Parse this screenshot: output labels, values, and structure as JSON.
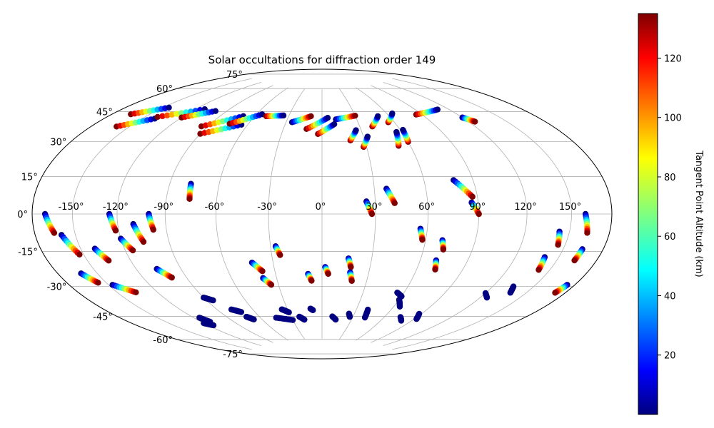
{
  "chart_data": {
    "type": "scatter",
    "projection": "aitoff/hammer (mollweide-like) world map, longitude -180 to 180, latitude -90 to 90",
    "title": "Solar occultations for diffraction order 149",
    "xlabel": "",
    "ylabel": "",
    "xlim": [
      -180,
      180
    ],
    "ylim": [
      -90,
      90
    ],
    "grid": true,
    "lon_ticks": [
      -150,
      -120,
      -90,
      -60,
      -30,
      0,
      30,
      60,
      90,
      120,
      150
    ],
    "lon_tick_labels": [
      "-150°",
      "-120°",
      "-90°",
      "-60°",
      "-30°",
      "0°",
      "30°",
      "60°",
      "90°",
      "120°",
      "150°"
    ],
    "lat_ticks": [
      75,
      60,
      45,
      30,
      15,
      0,
      -15,
      -30,
      -45,
      -60,
      -75
    ],
    "lat_tick_labels": [
      "75°",
      "60°",
      "45°",
      "30°",
      "15°",
      "0°",
      "-15°",
      "-30°",
      "-45°",
      "-60°",
      "-75°"
    ],
    "colorbar": {
      "label": "Tangent Point Altitude (km)",
      "colormap": "jet",
      "range": [
        0,
        135
      ],
      "ticks": [
        20,
        40,
        60,
        80,
        100,
        120
      ],
      "tick_labels": [
        "20",
        "40",
        "60",
        "80",
        "100",
        "120"
      ]
    },
    "series": [
      {
        "lon": [
          -170,
          -165
        ],
        "lat": [
          0,
          -8
        ],
        "alt": [
          0,
          135
        ]
      },
      {
        "lon": [
          -160,
          -153
        ],
        "lat": [
          -9,
          -18
        ],
        "alt": [
          0,
          135
        ]
      },
      {
        "lon": [
          -162,
          -156
        ],
        "lat": [
          -26,
          -31
        ],
        "alt": [
          0,
          135
        ]
      },
      {
        "lon": [
          -147,
          -136
        ],
        "lat": [
          -33,
          -38
        ],
        "alt": [
          0,
          135
        ]
      },
      {
        "lon": [
          -140,
          -135
        ],
        "lat": [
          -16,
          -22
        ],
        "alt": [
          0,
          135
        ]
      },
      {
        "lon": [
          -125,
          -122
        ],
        "lat": [
          0,
          -8
        ],
        "alt": [
          0,
          135
        ]
      },
      {
        "lon": [
          -120,
          -115
        ],
        "lat": [
          -12,
          -18
        ],
        "alt": [
          0,
          135
        ]
      },
      {
        "lon": [
          -110,
          -106
        ],
        "lat": [
          -5,
          -14
        ],
        "alt": [
          0,
          135
        ]
      },
      {
        "lon": [
          -106,
          -100
        ],
        "lat": [
          -28,
          -33
        ],
        "alt": [
          0,
          135
        ]
      },
      {
        "lon": [
          -100,
          -98
        ],
        "lat": [
          0,
          -8
        ],
        "alt": [
          0,
          135
        ]
      },
      {
        "lon": [
          -77,
          -76
        ],
        "lat": [
          16,
          8
        ],
        "alt": [
          0,
          135
        ]
      },
      {
        "lon": [
          -43,
          -38
        ],
        "lat": [
          -27,
          -32
        ],
        "alt": [
          0,
          135
        ]
      },
      {
        "lon": [
          -39,
          -35
        ],
        "lat": [
          -36,
          -40
        ],
        "alt": [
          0,
          135
        ]
      },
      {
        "lon": [
          -27,
          -25
        ],
        "lat": [
          -18,
          -23
        ],
        "alt": [
          0,
          135
        ]
      },
      {
        "lon": [
          -9,
          -7
        ],
        "lat": [
          -34,
          -38
        ],
        "alt": [
          0,
          135
        ]
      },
      {
        "lon": [
          2,
          4
        ],
        "lat": [
          -30,
          -34
        ],
        "alt": [
          0,
          135
        ]
      },
      {
        "lon": [
          16,
          18
        ],
        "lat": [
          -25,
          -30
        ],
        "alt": [
          0,
          135
        ]
      },
      {
        "lon": [
          18,
          20
        ],
        "lat": [
          -33,
          -38
        ],
        "alt": [
          0,
          135
        ]
      },
      {
        "lon": [
          25,
          28
        ],
        "lat": [
          7,
          0
        ],
        "alt": [
          0,
          135
        ]
      },
      {
        "lon": [
          37,
          41
        ],
        "lat": [
          14,
          6
        ],
        "alt": [
          0,
          135
        ]
      },
      {
        "lon": [
          56,
          58
        ],
        "lat": [
          -8,
          -14
        ],
        "alt": [
          0,
          135
        ]
      },
      {
        "lon": [
          70,
          72
        ],
        "lat": [
          -14,
          -19
        ],
        "alt": [
          0,
          135
        ]
      },
      {
        "lon": [
          70,
          72
        ],
        "lat": [
          -25,
          -30
        ],
        "alt": [
          0,
          135
        ]
      },
      {
        "lon": [
          78,
          87
        ],
        "lat": [
          18,
          9
        ],
        "alt": [
          0,
          135
        ]
      },
      {
        "lon": [
          86,
          90
        ],
        "lat": [
          6,
          0
        ],
        "alt": [
          0,
          135
        ]
      },
      {
        "lon": [
          143,
          145
        ],
        "lat": [
          -8,
          -14
        ],
        "alt": [
          0,
          135
        ]
      },
      {
        "lon": [
          140,
          142
        ],
        "lat": [
          -20,
          -26
        ],
        "alt": [
          0,
          135
        ]
      },
      {
        "lon": [
          160,
          163
        ],
        "lat": [
          0,
          -8
        ],
        "alt": [
          0,
          135
        ]
      },
      {
        "lon": [
          164,
          163
        ],
        "lat": [
          -15,
          -20
        ],
        "alt": [
          0,
          135
        ]
      },
      {
        "lon": [
          174,
          172
        ],
        "lat": [
          -30,
          -34
        ],
        "alt": [
          0,
          135
        ]
      },
      {
        "lon": [
          -165,
          -145
        ],
        "lat": [
          46,
          53
        ],
        "alt": [
          135,
          0
        ]
      },
      {
        "lon": [
          -160,
          -140
        ],
        "lat": [
          40,
          47
        ],
        "alt": [
          135,
          0
        ]
      },
      {
        "lon": [
          -140,
          -112
        ],
        "lat": [
          48,
          56
        ],
        "alt": [
          135,
          0
        ]
      },
      {
        "lon": [
          -120,
          -100
        ],
        "lat": [
          50,
          56
        ],
        "alt": [
          135,
          0
        ]
      },
      {
        "lon": [
          -95,
          -70
        ],
        "lat": [
          47,
          55
        ],
        "alt": [
          135,
          0
        ]
      },
      {
        "lon": [
          -90,
          -65
        ],
        "lat": [
          43,
          50
        ],
        "alt": [
          135,
          0
        ]
      },
      {
        "lon": [
          -75,
          -55
        ],
        "lat": [
          50,
          57
        ],
        "alt": [
          135,
          0
        ]
      },
      {
        "lon": [
          -50,
          -35
        ],
        "lat": [
          56,
          57
        ],
        "alt": [
          135,
          0
        ]
      },
      {
        "lon": [
          -25,
          -10
        ],
        "lat": [
          53,
          57
        ],
        "alt": [
          0,
          135
        ]
      },
      {
        "lon": [
          -12,
          5
        ],
        "lat": [
          49,
          56
        ],
        "alt": [
          135,
          0
        ]
      },
      {
        "lon": [
          -3,
          10
        ],
        "lat": [
          46,
          52
        ],
        "alt": [
          135,
          0
        ]
      },
      {
        "lon": [
          12,
          30
        ],
        "lat": [
          55,
          57
        ],
        "alt": [
          0,
          135
        ]
      },
      {
        "lon": [
          20,
          26
        ],
        "lat": [
          42,
          48
        ],
        "alt": [
          135,
          0
        ]
      },
      {
        "lon": [
          28,
          33
        ],
        "lat": [
          38,
          44
        ],
        "alt": [
          135,
          0
        ]
      },
      {
        "lon": [
          40,
          50
        ],
        "lat": [
          50,
          56
        ],
        "alt": [
          135,
          0
        ]
      },
      {
        "lon": [
          55,
          65
        ],
        "lat": [
          52,
          57
        ],
        "alt": [
          135,
          0
        ]
      },
      {
        "lon": [
          52,
          56
        ],
        "lat": [
          38,
          46
        ],
        "alt": [
          135,
          0
        ]
      },
      {
        "lon": [
          60,
          62
        ],
        "lat": [
          40,
          47
        ],
        "alt": [
          135,
          0
        ]
      },
      {
        "lon": [
          85,
          110
        ],
        "lat": [
          55,
          56
        ],
        "alt": [
          135,
          0
        ]
      },
      {
        "lon": [
          120,
          125
        ],
        "lat": [
          50,
          47
        ],
        "alt": [
          0,
          135
        ]
      },
      {
        "lon": [
          -120,
          -115
        ],
        "lat": [
          -58,
          -60
        ],
        "alt": [
          0,
          0
        ]
      },
      {
        "lon": [
          -115,
          -112
        ],
        "lat": [
          -55,
          -58
        ],
        "alt": [
          0,
          0
        ]
      },
      {
        "lon": [
          -90,
          -85
        ],
        "lat": [
          -45,
          -47
        ],
        "alt": [
          0,
          0
        ]
      },
      {
        "lon": [
          -78,
          -72
        ],
        "lat": [
          -53,
          -55
        ],
        "alt": [
          0,
          0
        ]
      },
      {
        "lon": [
          -72,
          -68
        ],
        "lat": [
          -58,
          -60
        ],
        "alt": [
          0,
          0
        ]
      },
      {
        "lon": [
          -45,
          -30
        ],
        "lat": [
          -60,
          -62
        ],
        "alt": [
          0,
          0
        ]
      },
      {
        "lon": [
          -35,
          -30
        ],
        "lat": [
          -55,
          -57
        ],
        "alt": [
          0,
          0
        ]
      },
      {
        "lon": [
          -22,
          -18
        ],
        "lat": [
          -60,
          -62
        ],
        "alt": [
          0,
          0
        ]
      },
      {
        "lon": [
          -10,
          -8
        ],
        "lat": [
          -55,
          -56
        ],
        "alt": [
          0,
          0
        ]
      },
      {
        "lon": [
          10,
          14
        ],
        "lat": [
          -60,
          -62
        ],
        "alt": [
          0,
          0
        ]
      },
      {
        "lon": [
          25,
          27
        ],
        "lat": [
          -58,
          -60
        ],
        "alt": [
          0,
          0
        ]
      },
      {
        "lon": [
          40,
          42
        ],
        "lat": [
          -55,
          -60
        ],
        "alt": [
          0,
          0
        ]
      },
      {
        "lon": [
          60,
          65
        ],
        "lat": [
          -48,
          -52
        ],
        "alt": [
          0,
          0
        ]
      },
      {
        "lon": [
          55,
          60
        ],
        "lat": [
          -44,
          -46
        ],
        "alt": [
          0,
          0
        ]
      },
      {
        "lon": [
          75,
          80
        ],
        "lat": [
          -58,
          -60
        ],
        "alt": [
          0,
          0
        ]
      },
      {
        "lon": [
          88,
          92
        ],
        "lat": [
          -55,
          -58
        ],
        "alt": [
          0,
          0
        ]
      },
      {
        "lon": [
          120,
          125
        ],
        "lat": [
          -40,
          -42
        ],
        "alt": [
          0,
          0
        ]
      },
      {
        "lon": [
          135,
          138
        ],
        "lat": [
          -35,
          -38
        ],
        "alt": [
          0,
          0
        ]
      }
    ]
  }
}
